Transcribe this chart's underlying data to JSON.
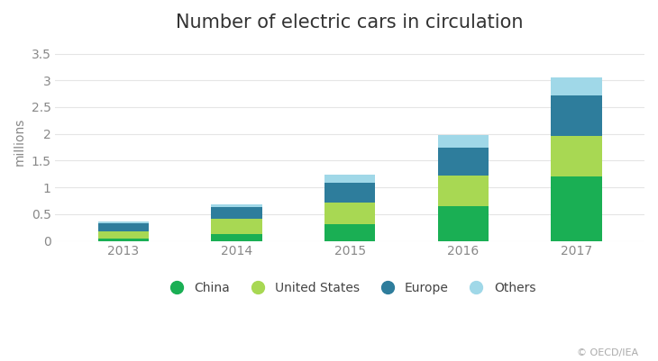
{
  "title": "Number of electric cars in circulation",
  "ylabel": "millions",
  "years": [
    "2013",
    "2014",
    "2015",
    "2016",
    "2017"
  ],
  "china": [
    0.05,
    0.12,
    0.31,
    0.65,
    1.2
  ],
  "united_states": [
    0.12,
    0.29,
    0.4,
    0.57,
    0.76
  ],
  "europe": [
    0.16,
    0.22,
    0.37,
    0.52,
    0.75
  ],
  "others": [
    0.04,
    0.05,
    0.15,
    0.24,
    0.34
  ],
  "colors": {
    "china": "#1aaf54",
    "united_states": "#a8d853",
    "europe": "#2e7d9c",
    "others": "#a0d8e8"
  },
  "ylim": [
    0,
    3.7
  ],
  "yticks": [
    0,
    0.5,
    1.0,
    1.5,
    2.0,
    2.5,
    3.0,
    3.5
  ],
  "background_color": "#ffffff",
  "grid_color": "#e5e5e5",
  "title_fontsize": 15,
  "label_fontsize": 10,
  "tick_fontsize": 10,
  "bar_width": 0.45,
  "copyright_text": "© OECD/IEA",
  "legend_labels": [
    "China",
    "United States",
    "Europe",
    "Others"
  ]
}
